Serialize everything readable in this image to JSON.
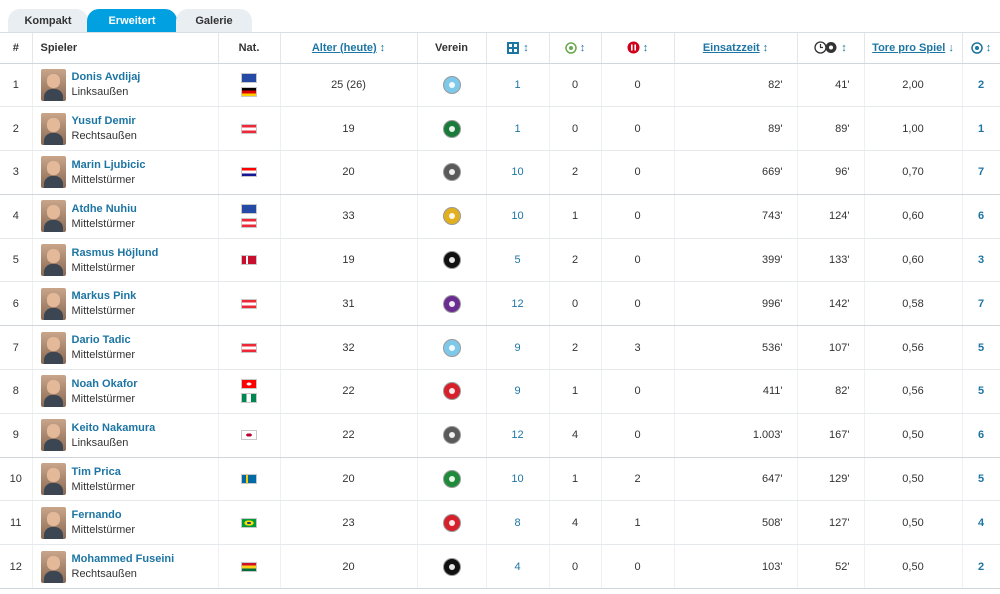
{
  "tabs": [
    "Kompakt",
    "Erweitert",
    "Galerie"
  ],
  "headers": {
    "rank": "#",
    "player": "Spieler",
    "nat": "Nat.",
    "age": "Alter (heute)",
    "club": "Verein",
    "tore_pro_spiel": "Tore pro Spiel",
    "einsatzzeit": "Einsatzzeit",
    "sort_both": "↕",
    "sort_desc": "↓"
  },
  "icons": {
    "appearances": "lineup-icon",
    "goals": "ball-icon",
    "red_cards": "substitution-icon",
    "minutes_per_goal": "clock-ball-icon",
    "goals_total": "ball-icon"
  },
  "colors": {
    "accent": "#00a0e1",
    "link": "#1d75a3"
  },
  "rows": [
    {
      "rank": "1",
      "name": "Donis Avdijaj",
      "pos": "Linksaußen",
      "flags": [
        "kosovo",
        "germany"
      ],
      "age": "25 (26)",
      "club": "club-lightblue",
      "apps": "1",
      "goals_a": "0",
      "red": "0",
      "minutes": "82'",
      "min_per_goal": "41'",
      "ratio": "2,00",
      "goals": "2"
    },
    {
      "rank": "2",
      "name": "Yusuf Demir",
      "pos": "Rechtsaußen",
      "flags": [
        "austria"
      ],
      "age": "19",
      "club": "club-green-black",
      "apps": "1",
      "goals_a": "0",
      "red": "0",
      "minutes": "89'",
      "min_per_goal": "89'",
      "ratio": "1,00",
      "goals": "1"
    },
    {
      "rank": "3",
      "name": "Marin Ljubicic",
      "pos": "Mittelstürmer",
      "flags": [
        "croatia"
      ],
      "age": "20",
      "club": "club-black-white",
      "apps": "10",
      "goals_a": "2",
      "red": "0",
      "minutes": "669'",
      "min_per_goal": "96'",
      "ratio": "0,70",
      "goals": "7"
    },
    {
      "rank": "4",
      "name": "Atdhe Nuhiu",
      "pos": "Mittelstürmer",
      "flags": [
        "kosovo",
        "austria"
      ],
      "age": "33",
      "club": "club-yellow-black",
      "apps": "10",
      "goals_a": "1",
      "red": "0",
      "minutes": "743'",
      "min_per_goal": "124'",
      "ratio": "0,60",
      "goals": "6"
    },
    {
      "rank": "5",
      "name": "Rasmus Höjlund",
      "pos": "Mittelstürmer",
      "flags": [
        "denmark"
      ],
      "age": "19",
      "club": "club-black",
      "apps": "5",
      "goals_a": "2",
      "red": "0",
      "minutes": "399'",
      "min_per_goal": "133'",
      "ratio": "0,60",
      "goals": "3"
    },
    {
      "rank": "6",
      "name": "Markus Pink",
      "pos": "Mittelstürmer",
      "flags": [
        "austria"
      ],
      "age": "31",
      "club": "club-purple",
      "apps": "12",
      "goals_a": "0",
      "red": "0",
      "minutes": "996'",
      "min_per_goal": "142'",
      "ratio": "0,58",
      "goals": "7"
    },
    {
      "rank": "7",
      "name": "Dario Tadic",
      "pos": "Mittelstürmer",
      "flags": [
        "austria"
      ],
      "age": "32",
      "club": "club-lightblue",
      "apps": "9",
      "goals_a": "2",
      "red": "3",
      "minutes": "536'",
      "min_per_goal": "107'",
      "ratio": "0,56",
      "goals": "5"
    },
    {
      "rank": "8",
      "name": "Noah Okafor",
      "pos": "Mittelstürmer",
      "flags": [
        "switzerland",
        "nigeria"
      ],
      "age": "22",
      "club": "club-red-white",
      "apps": "9",
      "goals_a": "1",
      "red": "0",
      "minutes": "411'",
      "min_per_goal": "82'",
      "ratio": "0,56",
      "goals": "5"
    },
    {
      "rank": "9",
      "name": "Keito Nakamura",
      "pos": "Linksaußen",
      "flags": [
        "japan"
      ],
      "age": "22",
      "club": "club-black-white",
      "apps": "12",
      "goals_a": "4",
      "red": "0",
      "minutes": "1.003'",
      "min_per_goal": "167'",
      "ratio": "0,50",
      "goals": "6"
    },
    {
      "rank": "10",
      "name": "Tim Prica",
      "pos": "Mittelstürmer",
      "flags": [
        "sweden"
      ],
      "age": "20",
      "club": "club-green-red",
      "apps": "10",
      "goals_a": "1",
      "red": "2",
      "minutes": "647'",
      "min_per_goal": "129'",
      "ratio": "0,50",
      "goals": "5"
    },
    {
      "rank": "11",
      "name": "Fernando",
      "pos": "Mittelstürmer",
      "flags": [
        "brazil"
      ],
      "age": "23",
      "club": "club-red-white",
      "apps": "8",
      "goals_a": "4",
      "red": "1",
      "minutes": "508'",
      "min_per_goal": "127'",
      "ratio": "0,50",
      "goals": "4"
    },
    {
      "rank": "12",
      "name": "Mohammed Fuseini",
      "pos": "Rechtsaußen",
      "flags": [
        "ghana"
      ],
      "age": "20",
      "club": "club-black",
      "apps": "4",
      "goals_a": "0",
      "red": "0",
      "minutes": "103'",
      "min_per_goal": "52'",
      "ratio": "0,50",
      "goals": "2"
    }
  ]
}
